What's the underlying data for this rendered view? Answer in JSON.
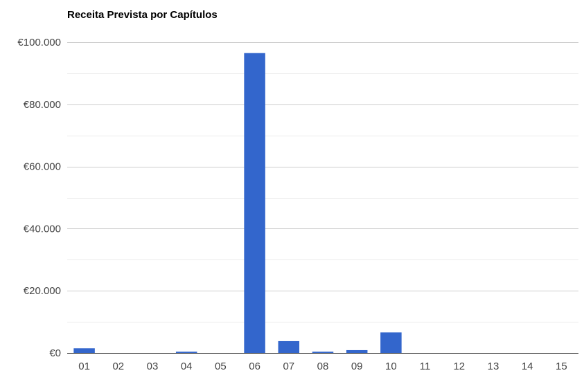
{
  "chart_data": {
    "type": "bar",
    "title": "Receita Prevista por Capítulos",
    "xlabel": "",
    "ylabel": "",
    "categories": [
      "01",
      "02",
      "03",
      "04",
      "05",
      "06",
      "07",
      "08",
      "09",
      "10",
      "11",
      "12",
      "13",
      "14",
      "15"
    ],
    "series": [
      {
        "values": [
          1500,
          0,
          0,
          400,
          0,
          96500,
          3800,
          400,
          900,
          6600,
          0,
          0,
          0,
          0,
          0
        ]
      }
    ],
    "ylim": [
      0,
      100000
    ],
    "y_ticks": [
      {
        "value": 0,
        "label": "€0"
      },
      {
        "value": 20000,
        "label": "€20.000"
      },
      {
        "value": 40000,
        "label": "€40.000"
      },
      {
        "value": 60000,
        "label": "€60.000"
      },
      {
        "value": 80000,
        "label": "€80.000"
      },
      {
        "value": 100000,
        "label": "€100.000"
      }
    ],
    "minor_gridlines": [
      10000,
      30000,
      50000,
      70000,
      90000
    ],
    "grid": true,
    "legend": "none",
    "bar_color": "#3366cc"
  }
}
